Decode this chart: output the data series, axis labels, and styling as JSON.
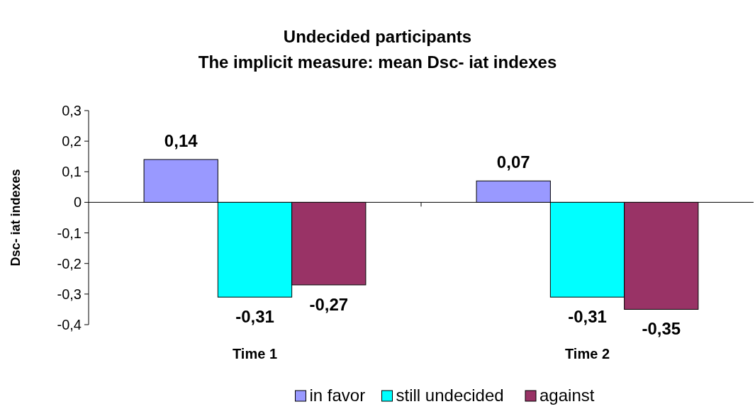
{
  "chart_data": {
    "type": "bar",
    "title": "Undecided participants",
    "subtitle": "The implicit measure: mean Dsc- iat indexes",
    "ylabel": "Dsc- iat indexes",
    "categories": [
      "Time 1",
      "Time 2"
    ],
    "series": [
      {
        "name": "in favor",
        "color": "#9999ff",
        "values": [
          0.14,
          0.07
        ],
        "value_labels": [
          "0,14",
          "0,07"
        ]
      },
      {
        "name": "still undecided",
        "color": "#00ffff",
        "values": [
          -0.31,
          -0.31
        ],
        "value_labels": [
          "-0,31",
          "-0,31"
        ]
      },
      {
        "name": "against",
        "color": "#993366",
        "values": [
          -0.27,
          -0.35
        ],
        "value_labels": [
          "-0,27",
          "-0,35"
        ]
      }
    ],
    "ylim": [
      -0.4,
      0.3
    ],
    "yticks": [
      {
        "value": 0.3,
        "label": "0,3"
      },
      {
        "value": 0.2,
        "label": "0,2"
      },
      {
        "value": 0.1,
        "label": "0,1"
      },
      0,
      {
        "value": -0.1,
        "label": "-0,1"
      },
      {
        "value": -0.2,
        "label": "-0,2"
      },
      {
        "value": -0.3,
        "label": "-0,3"
      },
      {
        "value": -0.4,
        "label": "-0,4"
      }
    ],
    "legend": "bottom"
  }
}
